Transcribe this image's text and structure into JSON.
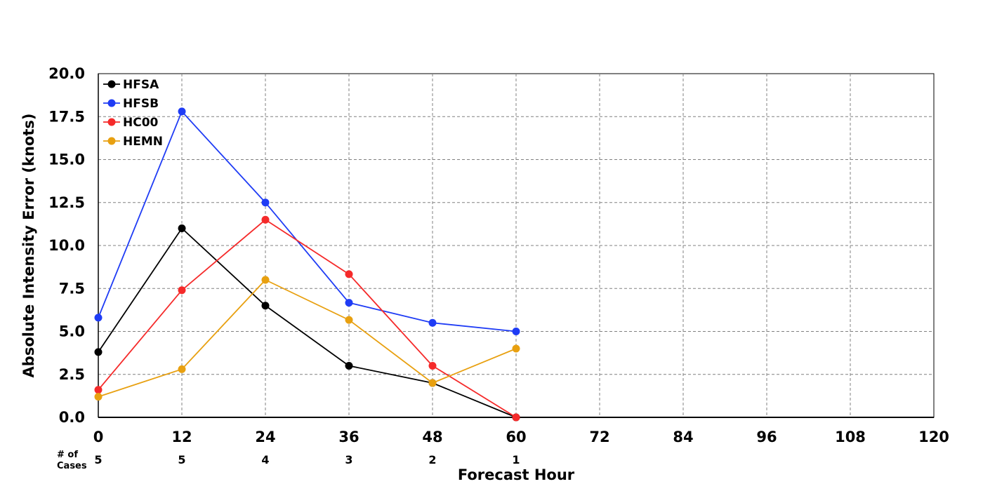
{
  "chart_data": {
    "type": "line",
    "xlabel": "Forecast Hour",
    "ylabel": "Absolute Intensity Error (knots)",
    "xlim": [
      0,
      120
    ],
    "ylim": [
      0,
      20
    ],
    "x_ticks": [
      "0",
      "12",
      "24",
      "36",
      "48",
      "60",
      "72",
      "84",
      "96",
      "108",
      "120"
    ],
    "y_ticks": [
      "0.0",
      "2.5",
      "5.0",
      "7.5",
      "10.0",
      "12.5",
      "15.0",
      "17.5",
      "20.0"
    ],
    "grid": true,
    "legend_position": "top-left",
    "series": [
      {
        "name": "HFSA",
        "color": "#000000",
        "x": [
          0,
          12,
          24,
          36,
          48,
          60
        ],
        "values": [
          3.8,
          11.0,
          6.5,
          3.0,
          2.0,
          0.0
        ]
      },
      {
        "name": "HFSB",
        "color": "#1f3cf5",
        "x": [
          0,
          12,
          24,
          36,
          48,
          60
        ],
        "values": [
          5.8,
          17.8,
          12.5,
          6.67,
          5.5,
          5.0
        ]
      },
      {
        "name": "HC00",
        "color": "#f52a2a",
        "x": [
          0,
          12,
          24,
          36,
          48,
          60
        ],
        "values": [
          1.6,
          7.4,
          11.5,
          8.33,
          3.0,
          0.0
        ]
      },
      {
        "name": "HEMN",
        "color": "#e8a010",
        "x": [
          0,
          12,
          24,
          36,
          48,
          60
        ],
        "values": [
          1.2,
          2.8,
          8.0,
          5.67,
          2.0,
          4.0
        ]
      }
    ],
    "cases": {
      "label_line1": "# of",
      "label_line2": "Cases",
      "x": [
        0,
        12,
        24,
        36,
        48,
        60
      ],
      "values": [
        "5",
        "5",
        "4",
        "3",
        "2",
        "1"
      ]
    }
  }
}
